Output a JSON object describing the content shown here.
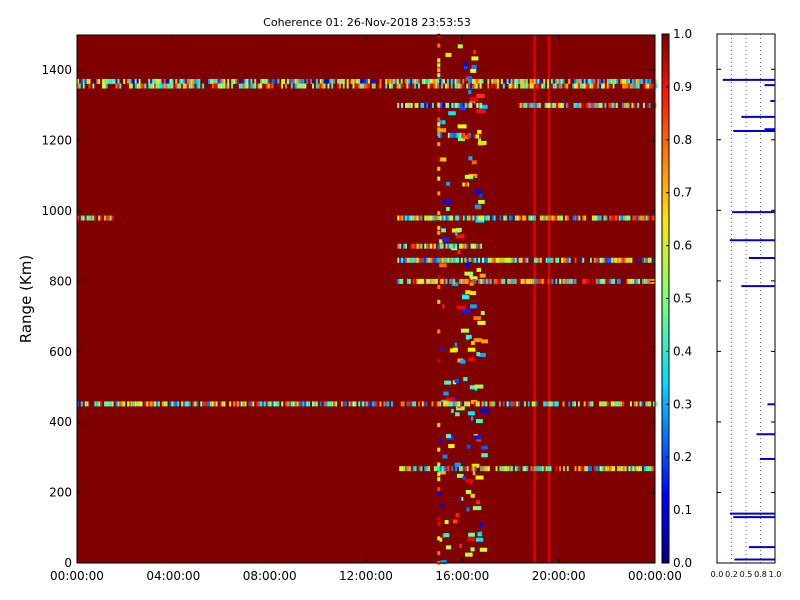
{
  "chart_data": [
    {
      "type": "heatmap",
      "title": "Coherence 01: 26-Nov-2018 23:53:53",
      "xlabel": "",
      "ylabel": "Range (Km)",
      "x_tick_labels": [
        "00:00:00",
        "04:00:00",
        "08:00:00",
        "12:00:00",
        "16:00:00",
        "20:00:00",
        "00:00:00"
      ],
      "x_range_hours": [
        0,
        24
      ],
      "y_ticks": [
        0,
        200,
        400,
        600,
        800,
        1000,
        1200,
        1400
      ],
      "ylim": [
        0,
        1500
      ],
      "background_value": 1.0,
      "colorbar": {
        "range": [
          0.0,
          1.0
        ],
        "ticks": [
          "0.0",
          "0.1",
          "0.2",
          "0.3",
          "0.4",
          "0.5",
          "0.6",
          "0.7",
          "0.8",
          "0.9",
          "1.0"
        ],
        "colormap": "jet"
      },
      "horizontal_bands": [
        {
          "range_km": 1368,
          "hours": [
            0,
            24
          ],
          "mean": 0.45
        },
        {
          "range_km": 1355,
          "hours": [
            0,
            24
          ],
          "mean": 0.65
        },
        {
          "range_km": 1300,
          "hours": [
            13.3,
            16.8
          ],
          "mean": 0.35
        },
        {
          "range_km": 1300,
          "hours": [
            18.3,
            24
          ],
          "mean": 0.6
        },
        {
          "range_km": 1215,
          "hours": [
            15,
            16.5
          ],
          "mean": 0.5
        },
        {
          "range_km": 980,
          "hours": [
            0,
            1.5
          ],
          "mean": 0.7
        },
        {
          "range_km": 980,
          "hours": [
            13.3,
            24
          ],
          "mean": 0.55
        },
        {
          "range_km": 900,
          "hours": [
            13.3,
            16.8
          ],
          "mean": 0.55
        },
        {
          "range_km": 860,
          "hours": [
            13.3,
            24
          ],
          "mean": 0.5
        },
        {
          "range_km": 800,
          "hours": [
            13.3,
            24
          ],
          "mean": 0.6
        },
        {
          "range_km": 452,
          "hours": [
            0,
            24
          ],
          "mean": 0.55
        },
        {
          "range_km": 268,
          "hours": [
            13.3,
            24
          ],
          "mean": 0.55
        }
      ],
      "vertical_bands": [
        {
          "hour": 15,
          "mean": 0.7
        },
        {
          "hour": 19,
          "mean": 0.9
        },
        {
          "hour": 19.6,
          "mean": 0.9
        }
      ]
    },
    {
      "type": "line",
      "title": "",
      "xlabel": "",
      "ylabel": "",
      "x_tick_labels": [
        "0.0",
        "0.2",
        "0.5",
        "0.8",
        "1.0"
      ],
      "xlim": [
        0,
        1
      ],
      "ylim": [
        0,
        1500
      ],
      "grid": true,
      "series": [
        {
          "color": "#0000cc",
          "segments": [
            {
              "y": 1370,
              "x": [
                0.1,
                1.0
              ]
            },
            {
              "y": 1355,
              "x": [
                0.82,
                1.0
              ]
            },
            {
              "y": 1310,
              "x": [
                0.92,
                1.0
              ]
            },
            {
              "y": 1265,
              "x": [
                0.42,
                1.0
              ]
            },
            {
              "y": 1230,
              "x": [
                0.82,
                1.0
              ]
            },
            {
              "y": 1225,
              "x": [
                0.28,
                1.0
              ]
            },
            {
              "y": 995,
              "x": [
                0.26,
                1.0
              ]
            },
            {
              "y": 915,
              "x": [
                0.22,
                1.0
              ]
            },
            {
              "y": 865,
              "x": [
                0.55,
                1.0
              ]
            },
            {
              "y": 785,
              "x": [
                0.42,
                1.0
              ]
            },
            {
              "y": 450,
              "x": [
                0.87,
                1.0
              ]
            },
            {
              "y": 365,
              "x": [
                0.68,
                1.0
              ]
            },
            {
              "y": 295,
              "x": [
                0.74,
                1.0
              ]
            },
            {
              "y": 140,
              "x": [
                0.22,
                1.0
              ]
            },
            {
              "y": 130,
              "x": [
                0.28,
                1.0
              ]
            },
            {
              "y": 45,
              "x": [
                0.55,
                1.0
              ]
            },
            {
              "y": 10,
              "x": [
                0.3,
                1.0
              ]
            }
          ]
        }
      ]
    }
  ]
}
